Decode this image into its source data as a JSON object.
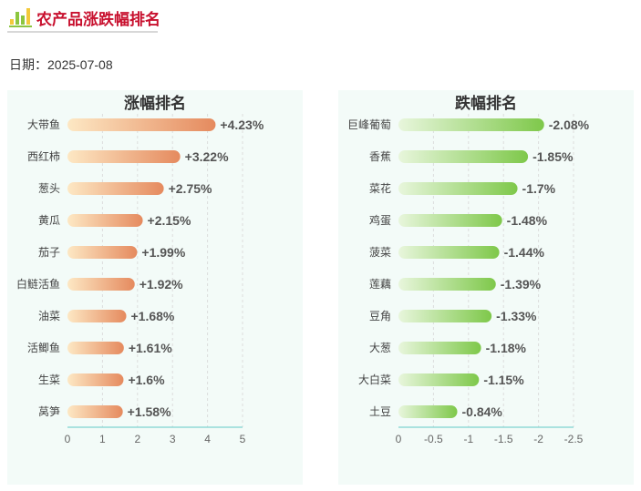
{
  "header": {
    "title": "农产品涨跌幅排名",
    "logo_icon": "bar-chart-icon"
  },
  "date": {
    "label": "日期：",
    "value": "2025-07-08"
  },
  "chart_data": [
    {
      "type": "bar",
      "orientation": "horizontal",
      "title": "涨幅排名",
      "categories": [
        "大带鱼",
        "西红柿",
        "葱头",
        "黄瓜",
        "茄子",
        "白鲢活鱼",
        "油菜",
        "活鲫鱼",
        "生菜",
        "莴笋"
      ],
      "values": [
        4.23,
        3.22,
        2.75,
        2.15,
        1.99,
        1.92,
        1.68,
        1.61,
        1.6,
        1.58
      ],
      "value_labels": [
        "+4.23%",
        "+3.22%",
        "+2.75%",
        "+2.15%",
        "+1.99%",
        "+1.92%",
        "+1.68%",
        "+1.61%",
        "+1.6%",
        "+1.58%"
      ],
      "xlim": [
        0,
        5
      ],
      "xticks": [
        "0",
        "1",
        "2",
        "3",
        "4",
        "5"
      ],
      "grid": "vertical dashed",
      "colors": {
        "bar_start": "#fde8c4",
        "bar_end": "#e58a5e"
      }
    },
    {
      "type": "bar",
      "orientation": "horizontal",
      "title": "跌幅排名",
      "categories": [
        "巨峰葡萄",
        "香蕉",
        "菜花",
        "鸡蛋",
        "菠菜",
        "莲藕",
        "豆角",
        "大葱",
        "大白菜",
        "土豆"
      ],
      "values": [
        -2.08,
        -1.85,
        -1.7,
        -1.48,
        -1.44,
        -1.39,
        -1.33,
        -1.18,
        -1.15,
        -0.84
      ],
      "value_labels": [
        "-2.08%",
        "-1.85%",
        "-1.7%",
        "-1.48%",
        "-1.44%",
        "-1.39%",
        "-1.33%",
        "-1.18%",
        "-1.15%",
        "-0.84%"
      ],
      "xlim": [
        0,
        -2.5
      ],
      "xticks": [
        "0",
        "-0.5",
        "-1",
        "-1.5",
        "-2",
        "-2.5"
      ],
      "grid": "vertical dashed",
      "colors": {
        "bar_start": "#e8f6dc",
        "bar_end": "#7ec84a"
      }
    }
  ]
}
